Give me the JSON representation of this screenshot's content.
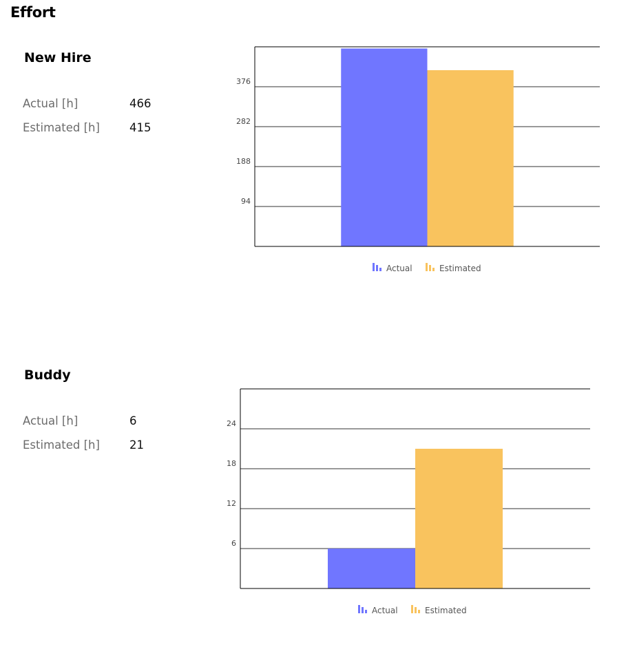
{
  "page": {
    "title": "Effort"
  },
  "legend_labels": {
    "actual": "Actual",
    "estimated": "Estimated"
  },
  "colors": {
    "actual": "#7076ff",
    "estimated": "#f9c35e"
  },
  "sections": [
    {
      "title": "New Hire",
      "stats": [
        {
          "label": "Actual [h]",
          "value": "466"
        },
        {
          "label": "Estimated [h]",
          "value": "415"
        }
      ]
    },
    {
      "title": "Buddy",
      "stats": [
        {
          "label": "Actual [h]",
          "value": "6"
        },
        {
          "label": "Estimated [h]",
          "value": "21"
        }
      ]
    }
  ],
  "chart_data": [
    {
      "type": "bar",
      "title": "",
      "xlabel": "",
      "ylabel": "",
      "categories": [
        ""
      ],
      "series": [
        {
          "name": "Actual",
          "values": [
            466
          ]
        },
        {
          "name": "Estimated",
          "values": [
            415
          ]
        }
      ],
      "yticks": [
        94,
        188,
        282,
        376
      ],
      "ylim": [
        0,
        470
      ],
      "grid": true,
      "legend": "bottom-center"
    },
    {
      "type": "bar",
      "title": "",
      "xlabel": "",
      "ylabel": "",
      "categories": [
        ""
      ],
      "series": [
        {
          "name": "Actual",
          "values": [
            6
          ]
        },
        {
          "name": "Estimated",
          "values": [
            21
          ]
        }
      ],
      "yticks": [
        6,
        12,
        18,
        24
      ],
      "ylim": [
        0,
        30
      ],
      "grid": true,
      "legend": "bottom-center"
    }
  ]
}
